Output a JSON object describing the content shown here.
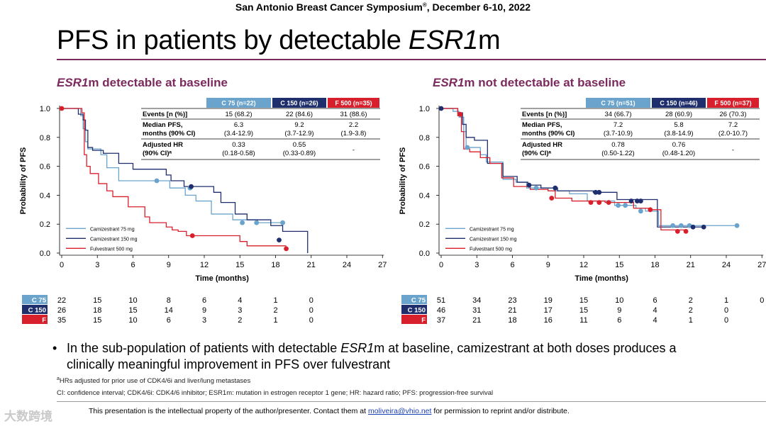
{
  "header": {
    "conference": "San Antonio Breast Cancer Symposium",
    "reg_mark": "®",
    "conference_dates": ", December 6-10, 2022"
  },
  "title": {
    "prefix": "PFS in patients by detectable ",
    "gene": "ESR1",
    "suffix": "m"
  },
  "colors": {
    "c75": "#6aa3cc",
    "c150": "#1f2f6e",
    "f500": "#d8202c",
    "accent": "#7b2a5e"
  },
  "chart_data": [
    {
      "type": "line",
      "subtype": "kaplan-meier",
      "title_gene": "ESR1",
      "title_rest": "m detectable at baseline",
      "xlabel": "Time (months)",
      "ylabel": "Probability of PFS",
      "xlim": [
        0,
        27
      ],
      "ylim": [
        0,
        1
      ],
      "xticks": [
        0,
        3,
        6,
        9,
        12,
        15,
        18,
        21,
        24,
        27
      ],
      "yticks": [
        0.0,
        0.2,
        0.4,
        0.6,
        0.8,
        1.0
      ],
      "yticklabels": [
        "0.0",
        "0.2",
        "0.4",
        "0.6",
        "0.8",
        "1.0"
      ],
      "legend": [
        "Camizestrant 75 mg",
        "Camizestrant 150 mg",
        "Fulvestrant 500 mg"
      ],
      "table": {
        "headers": [
          "C 75 (n=22)",
          "C 150 (n=26)",
          "F 500 (n=35)"
        ],
        "rows": [
          {
            "label1": "Events [n (%)]",
            "label2": "",
            "cells": [
              [
                "15 (68.2)"
              ],
              [
                "22 (84.6)"
              ],
              [
                "31 (88.6)"
              ]
            ]
          },
          {
            "label1": "Median PFS,",
            "label2": "months (90% CI)",
            "cells": [
              [
                "6.3",
                "(3.4-12.9)"
              ],
              [
                "9.2",
                "(3.7-12.9)"
              ],
              [
                "2.2",
                "(1.9-3.8)"
              ]
            ]
          },
          {
            "label1": "Adjusted HR",
            "label2": "(90% CI)ᵃ",
            "cells": [
              [
                "0.33",
                "(0.18-0.58)"
              ],
              [
                "0.55",
                "(0.33-0.89)"
              ],
              [
                "-"
              ]
            ]
          }
        ]
      },
      "series": [
        {
          "name": "Camizestrant 75 mg",
          "color": "#6aa3cc",
          "steps": [
            [
              0,
              1.0
            ],
            [
              1.6,
              0.95
            ],
            [
              1.8,
              0.86
            ],
            [
              2.0,
              0.77
            ],
            [
              2.2,
              0.72
            ],
            [
              3.3,
              0.68
            ],
            [
              3.8,
              0.59
            ],
            [
              4.8,
              0.5
            ],
            [
              6.3,
              0.5
            ],
            [
              9.1,
              0.45
            ],
            [
              10.4,
              0.4
            ],
            [
              11.3,
              0.36
            ],
            [
              12.6,
              0.27
            ],
            [
              14.4,
              0.23
            ],
            [
              16.5,
              0.21
            ],
            [
              18.6,
              0.21
            ]
          ],
          "censors": [
            [
              8.0,
              0.5
            ],
            [
              10.8,
              0.45
            ],
            [
              15.2,
              0.21
            ],
            [
              16.4,
              0.21
            ],
            [
              18.6,
              0.21
            ]
          ]
        },
        {
          "name": "Camizestrant 150 mg",
          "color": "#1f2f6e",
          "steps": [
            [
              0,
              1.0
            ],
            [
              1.4,
              0.96
            ],
            [
              1.8,
              0.92
            ],
            [
              2.0,
              0.85
            ],
            [
              2.2,
              0.73
            ],
            [
              2.6,
              0.71
            ],
            [
              3.5,
              0.69
            ],
            [
              4.8,
              0.62
            ],
            [
              6.0,
              0.58
            ],
            [
              8.8,
              0.54
            ],
            [
              9.2,
              0.5
            ],
            [
              10.3,
              0.46
            ],
            [
              12.4,
              0.46
            ],
            [
              12.8,
              0.42
            ],
            [
              13.4,
              0.35
            ],
            [
              14.6,
              0.27
            ],
            [
              15.6,
              0.23
            ],
            [
              17.6,
              0.19
            ],
            [
              18.6,
              0.15
            ],
            [
              20.7,
              0.0
            ]
          ],
          "censors": [
            [
              10.9,
              0.46
            ],
            [
              18.3,
              0.09
            ]
          ]
        },
        {
          "name": "Fulvestrant 500 mg",
          "color": "#d8202c",
          "steps": [
            [
              0,
              1.0
            ],
            [
              1.7,
              0.97
            ],
            [
              1.9,
              0.68
            ],
            [
              2.1,
              0.6
            ],
            [
              2.4,
              0.55
            ],
            [
              3.1,
              0.48
            ],
            [
              3.8,
              0.43
            ],
            [
              4.3,
              0.39
            ],
            [
              5.6,
              0.32
            ],
            [
              7.0,
              0.25
            ],
            [
              7.4,
              0.21
            ],
            [
              8.8,
              0.18
            ],
            [
              9.3,
              0.16
            ],
            [
              9.8,
              0.15
            ],
            [
              10.5,
              0.12
            ],
            [
              15.0,
              0.08
            ],
            [
              15.6,
              0.05
            ],
            [
              18.9,
              0.05
            ]
          ],
          "censors": [
            [
              0,
              1.0
            ],
            [
              11.0,
              0.12
            ],
            [
              18.9,
              0.03
            ]
          ]
        }
      ],
      "at_risk": {
        "labels": [
          "C 75",
          "C 150",
          "F"
        ],
        "times": [
          0,
          3,
          6,
          9,
          12,
          15,
          18,
          21
        ],
        "rows": [
          [
            "22",
            "15",
            "10",
            "8",
            "6",
            "4",
            "1",
            "0"
          ],
          [
            "26",
            "18",
            "15",
            "14",
            "9",
            "3",
            "2",
            "0"
          ],
          [
            "35",
            "15",
            "10",
            "6",
            "3",
            "2",
            "1",
            "0"
          ]
        ]
      }
    },
    {
      "type": "line",
      "subtype": "kaplan-meier",
      "title_gene": "ESR1",
      "title_rest": "m not detectable at baseline",
      "xlabel": "Time (months)",
      "ylabel": "Probability of PFS",
      "xlim": [
        0,
        27
      ],
      "ylim": [
        0,
        1
      ],
      "xticks": [
        0,
        3,
        6,
        9,
        12,
        15,
        18,
        21,
        24,
        27
      ],
      "yticks": [
        0.0,
        0.2,
        0.4,
        0.6,
        0.8,
        1.0
      ],
      "yticklabels": [
        "0.0",
        "0.2",
        "0.4",
        "0.6",
        "0.8",
        "1.0"
      ],
      "legend": [
        "Camizestrant 75 mg",
        "Camizestrant 150 mg",
        "Fulvestrant 500 mg"
      ],
      "table": {
        "headers": [
          "C 75 (n=51)",
          "C 150 (n=46)",
          "F 500 (n=37)"
        ],
        "rows": [
          {
            "label1": "Events [n (%)]",
            "label2": "",
            "cells": [
              [
                "34 (66.7)"
              ],
              [
                "28 (60.9)"
              ],
              [
                "26 (70.3)"
              ]
            ]
          },
          {
            "label1": "Median PFS,",
            "label2": "months (90% CI)",
            "cells": [
              [
                "7.2",
                "(3.7-10.9)"
              ],
              [
                "5.8",
                "(3.8-14.9)"
              ],
              [
                "7.2",
                "(2.0-10.7)"
              ]
            ]
          },
          {
            "label1": "Adjusted HR",
            "label2": "(90% CI)ᵃ",
            "cells": [
              [
                "0.78",
                "(0.50-1.22)"
              ],
              [
                "0.76",
                "(0.48-1.20)"
              ],
              [
                "-"
              ]
            ]
          }
        ]
      },
      "series": [
        {
          "name": "Camizestrant 75 mg",
          "color": "#6aa3cc",
          "steps": [
            [
              0,
              1.0
            ],
            [
              1.0,
              0.98
            ],
            [
              1.5,
              0.94
            ],
            [
              1.9,
              0.84
            ],
            [
              2.1,
              0.73
            ],
            [
              2.6,
              0.73
            ],
            [
              3.3,
              0.68
            ],
            [
              3.8,
              0.63
            ],
            [
              5.2,
              0.51
            ],
            [
              6.3,
              0.49
            ],
            [
              7.2,
              0.45
            ],
            [
              9.0,
              0.43
            ],
            [
              10.8,
              0.41
            ],
            [
              12.3,
              0.36
            ],
            [
              14.6,
              0.33
            ],
            [
              16.4,
              0.31
            ],
            [
              17.2,
              0.29
            ],
            [
              18.3,
              0.19
            ],
            [
              24.9,
              0.19
            ]
          ],
          "censors": [
            [
              2.2,
              0.73
            ],
            [
              8.0,
              0.45
            ],
            [
              14.9,
              0.33
            ],
            [
              15.5,
              0.33
            ],
            [
              16.8,
              0.29
            ],
            [
              19.5,
              0.19
            ],
            [
              20.2,
              0.19
            ],
            [
              20.9,
              0.19
            ],
            [
              24.9,
              0.19
            ]
          ]
        },
        {
          "name": "Camizestrant 150 mg",
          "color": "#1f2f6e",
          "steps": [
            [
              0,
              1.0
            ],
            [
              1.4,
              0.97
            ],
            [
              1.8,
              0.89
            ],
            [
              2.1,
              0.8
            ],
            [
              2.8,
              0.78
            ],
            [
              3.9,
              0.62
            ],
            [
              5.2,
              0.53
            ],
            [
              6.4,
              0.49
            ],
            [
              7.3,
              0.47
            ],
            [
              8.4,
              0.45
            ],
            [
              9.8,
              0.43
            ],
            [
              12.8,
              0.42
            ],
            [
              14.8,
              0.37
            ],
            [
              18.2,
              0.18
            ],
            [
              22.1,
              0.18
            ]
          ],
          "censors": [
            [
              0,
              1.0
            ],
            [
              7.4,
              0.47
            ],
            [
              9.6,
              0.45
            ],
            [
              13.0,
              0.42
            ],
            [
              13.3,
              0.42
            ],
            [
              16.0,
              0.36
            ],
            [
              16.5,
              0.36
            ],
            [
              16.8,
              0.36
            ],
            [
              21.2,
              0.18
            ],
            [
              22.1,
              0.18
            ]
          ]
        },
        {
          "name": "Fulvestrant 500 mg",
          "color": "#d8202c",
          "steps": [
            [
              0,
              1.0
            ],
            [
              1.4,
              0.95
            ],
            [
              1.7,
              0.84
            ],
            [
              1.9,
              0.72
            ],
            [
              2.4,
              0.7
            ],
            [
              3.3,
              0.66
            ],
            [
              4.1,
              0.62
            ],
            [
              5.1,
              0.52
            ],
            [
              6.1,
              0.46
            ],
            [
              7.5,
              0.44
            ],
            [
              9.0,
              0.43
            ],
            [
              9.6,
              0.38
            ],
            [
              11.0,
              0.36
            ],
            [
              13.8,
              0.35
            ],
            [
              16.2,
              0.31
            ],
            [
              17.5,
              0.3
            ],
            [
              18.5,
              0.16
            ],
            [
              20.6,
              0.16
            ]
          ],
          "censors": [
            [
              1.6,
              0.96
            ],
            [
              9.3,
              0.38
            ],
            [
              12.6,
              0.35
            ],
            [
              13.3,
              0.35
            ],
            [
              14.1,
              0.35
            ],
            [
              17.6,
              0.3
            ],
            [
              19.9,
              0.15
            ],
            [
              20.6,
              0.15
            ]
          ]
        }
      ],
      "at_risk": {
        "labels": [
          "C 75",
          "C 150",
          "F"
        ],
        "times": [
          0,
          3,
          6,
          9,
          12,
          15,
          18,
          21,
          24,
          27
        ],
        "rows": [
          [
            "51",
            "34",
            "23",
            "19",
            "15",
            "10",
            "6",
            "2",
            "1",
            "0"
          ],
          [
            "46",
            "31",
            "21",
            "17",
            "15",
            "9",
            "4",
            "2",
            "0"
          ],
          [
            "37",
            "21",
            "18",
            "16",
            "11",
            "6",
            "4",
            "1",
            "0"
          ]
        ]
      }
    }
  ],
  "bullet": {
    "marker": "•",
    "text_before": "In the sub-population of patients with detectable ",
    "gene": "ESR1",
    "text_after": "m at baseline, camizestrant at both doses produces a clinically meaningful improvement in PFS over fulvestrant"
  },
  "footnotes": {
    "a_marker": "a",
    "a_text": "HRs adjusted for prior use of CDK4/6i and liver/lung metastases",
    "abbreviations": "CI: confidence interval; CDK4/6i: CDK4/6 inhibitor; ESR1m: mutation in estrogen receptor 1 gene; HR: hazard ratio; PFS: progression-free survival"
  },
  "disclaimer": {
    "text": "This presentation is the intellectual property of the author/presenter. Contact them at ",
    "email": "moliveira@vhio.net",
    "text_after": " for permission to reprint and/or distribute."
  },
  "watermark": "大数跨境"
}
